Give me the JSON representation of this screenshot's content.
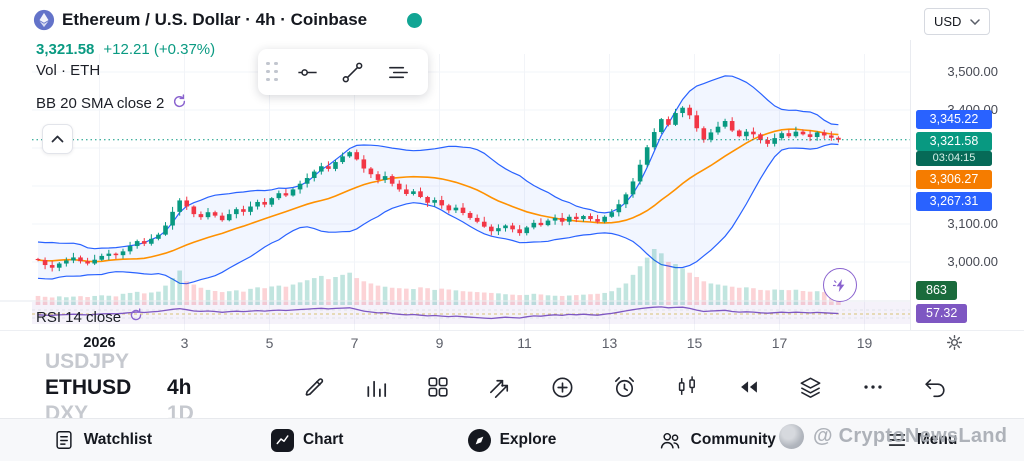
{
  "header": {
    "symbol_title": "Ethereum / U.S. Dollar · 4h · Coinbase",
    "currency_selector": "USD",
    "last_price": "3,321.58",
    "change": "+12.21 (+0.37%)",
    "legend_volume": "Vol · ETH",
    "legend_bb": "BB 20 SMA close 2",
    "legend_rsi": "RSI 14 close"
  },
  "colors": {
    "up": "#089981",
    "down": "#f23645",
    "bb_band": "#2962ff",
    "bb_basis": "#ff9100",
    "rsi_line": "#7e57c2",
    "accent": "#089981"
  },
  "price_axis": {
    "levels": [
      {
        "text": "3,500.00",
        "price": 3500
      },
      {
        "text": "3,400.00",
        "price": 3400
      },
      {
        "text": "3,100.00",
        "price": 3100
      },
      {
        "text": "3,000.00",
        "price": 3000
      }
    ],
    "badges": {
      "bb_upper": {
        "label": "3,345.22",
        "color": "#2962ff"
      },
      "last": {
        "label": "3,321.58",
        "countdown": "03:04:15",
        "color": "#089981"
      },
      "bb_basis": {
        "label": "3,306.27",
        "color": "#f57c00"
      },
      "bb_lower": {
        "label": "3,267.31",
        "color": "#2962ff"
      },
      "volume": {
        "label": "863",
        "color": "#1a6b3c"
      },
      "rsi": {
        "label": "57.32",
        "color": "#7e57c2"
      }
    }
  },
  "time_axis": {
    "labels": [
      {
        "text": "2026",
        "day": 1
      },
      {
        "text": "3",
        "day": 3
      },
      {
        "text": "5",
        "day": 5
      },
      {
        "text": "7",
        "day": 7
      },
      {
        "text": "9",
        "day": 9
      },
      {
        "text": "11",
        "day": 11
      },
      {
        "text": "13",
        "day": 13
      },
      {
        "text": "15",
        "day": 15
      },
      {
        "text": "17",
        "day": 17
      },
      {
        "text": "19",
        "day": 19
      }
    ]
  },
  "symbol_picker": {
    "rows": [
      {
        "symbol": "USDJPY",
        "timeframe": ""
      },
      {
        "symbol": "ETHUSD",
        "timeframe": "4h",
        "active": true
      },
      {
        "symbol": "DXY",
        "timeframe": "1D"
      }
    ]
  },
  "floating_toolbar": {
    "icons": [
      "drag-handle",
      "horizontal-line-tool",
      "trend-line-tool",
      "parallel-lines-tool"
    ]
  },
  "toolbar": {
    "icons": [
      "draw",
      "indicators",
      "layouts",
      "compare",
      "add",
      "alert",
      "chart-type",
      "bar-replay",
      "objects",
      "more",
      "undo"
    ]
  },
  "bottom_nav": {
    "items": [
      {
        "label": "Watchlist",
        "icon": "watchlist-icon",
        "active": false
      },
      {
        "label": "Chart",
        "icon": "chart-icon",
        "active": true
      },
      {
        "label": "Explore",
        "icon": "explore-icon",
        "active": false
      },
      {
        "label": "Community",
        "icon": "community-icon",
        "active": false
      },
      {
        "label": "Menu",
        "icon": "menu-icon",
        "active": false
      }
    ]
  },
  "watermark": {
    "text": "@ CryptoNewsLand"
  },
  "chart_data": {
    "type": "candlestick",
    "symbol": "ETHUSD",
    "exchange": "Coinbase",
    "interval": "4h",
    "last_price": 3321.58,
    "change": 12.21,
    "change_pct": 0.37,
    "indicators": {
      "bollinger": {
        "length": 20,
        "source": "close",
        "mult": 2,
        "upper": 3345.22,
        "basis": 3306.27,
        "lower": 3267.31
      },
      "rsi": {
        "length": 14,
        "source": "close",
        "value": 57.32
      },
      "volume": {
        "unit": "ETH",
        "value": 863
      }
    },
    "y_axis_range": [
      2940,
      3560
    ],
    "x_axis": {
      "start_label": "2026",
      "visible_days": [
        1,
        3,
        5,
        7,
        9,
        11,
        13,
        15,
        17,
        19
      ]
    },
    "candles_per_day": 6,
    "warmup_closes": [
      3040,
      3020,
      2990,
      2965,
      2980,
      3010,
      3035,
      3050,
      3025,
      2995,
      2970,
      2985,
      3005,
      3030,
      3045,
      3020,
      2990,
      2975,
      2995,
      3008
    ],
    "closes": [
      3005,
      2992,
      2985,
      2996,
      3004,
      3012,
      3002,
      2996,
      3006,
      3016,
      3022,
      3018,
      3028,
      3042,
      3055,
      3048,
      3061,
      3072,
      3096,
      3132,
      3162,
      3146,
      3126,
      3118,
      3131,
      3122,
      3110,
      3126,
      3139,
      3132,
      3146,
      3158,
      3151,
      3168,
      3181,
      3175,
      3191,
      3206,
      3221,
      3238,
      3252,
      3245,
      3263,
      3278,
      3289,
      3270,
      3246,
      3231,
      3216,
      3226,
      3206,
      3191,
      3179,
      3186,
      3171,
      3156,
      3163,
      3149,
      3136,
      3143,
      3129,
      3116,
      3106,
      3093,
      3081,
      3089,
      3096,
      3086,
      3076,
      3091,
      3103,
      3097,
      3109,
      3116,
      3106,
      3119,
      3113,
      3121,
      3113,
      3106,
      3119,
      3131,
      3152,
      3178,
      3212,
      3256,
      3302,
      3342,
      3376,
      3361,
      3392,
      3406,
      3386,
      3352,
      3322,
      3341,
      3356,
      3371,
      3346,
      3331,
      3343,
      3336,
      3321,
      3311,
      3326,
      3339,
      3331,
      3343,
      3336,
      3329,
      3341,
      3333,
      3327,
      3321.58
    ],
    "volumes": [
      420,
      380,
      350,
      400,
      360,
      390,
      410,
      370,
      420,
      450,
      430,
      400,
      520,
      560,
      610,
      540,
      580,
      620,
      900,
      1250,
      1600,
      1100,
      950,
      800,
      700,
      650,
      600,
      640,
      680,
      620,
      750,
      820,
      780,
      860,
      900,
      850,
      950,
      1050,
      1150,
      1250,
      1350,
      1200,
      1300,
      1400,
      1500,
      1250,
      1100,
      1000,
      900,
      850,
      800,
      780,
      760,
      740,
      820,
      780,
      700,
      760,
      720,
      680,
      640,
      620,
      600,
      580,
      560,
      540,
      500,
      480,
      460,
      470,
      520,
      490,
      450,
      430,
      420,
      440,
      460,
      480,
      500,
      520,
      560,
      640,
      800,
      1000,
      1400,
      1800,
      2200,
      2600,
      2400,
      2000,
      1900,
      1700,
      1500,
      1300,
      1100,
      1000,
      950,
      900,
      850,
      800,
      820,
      780,
      700,
      680,
      720,
      700,
      690,
      710,
      650,
      620,
      640,
      600,
      580,
      863
    ]
  }
}
